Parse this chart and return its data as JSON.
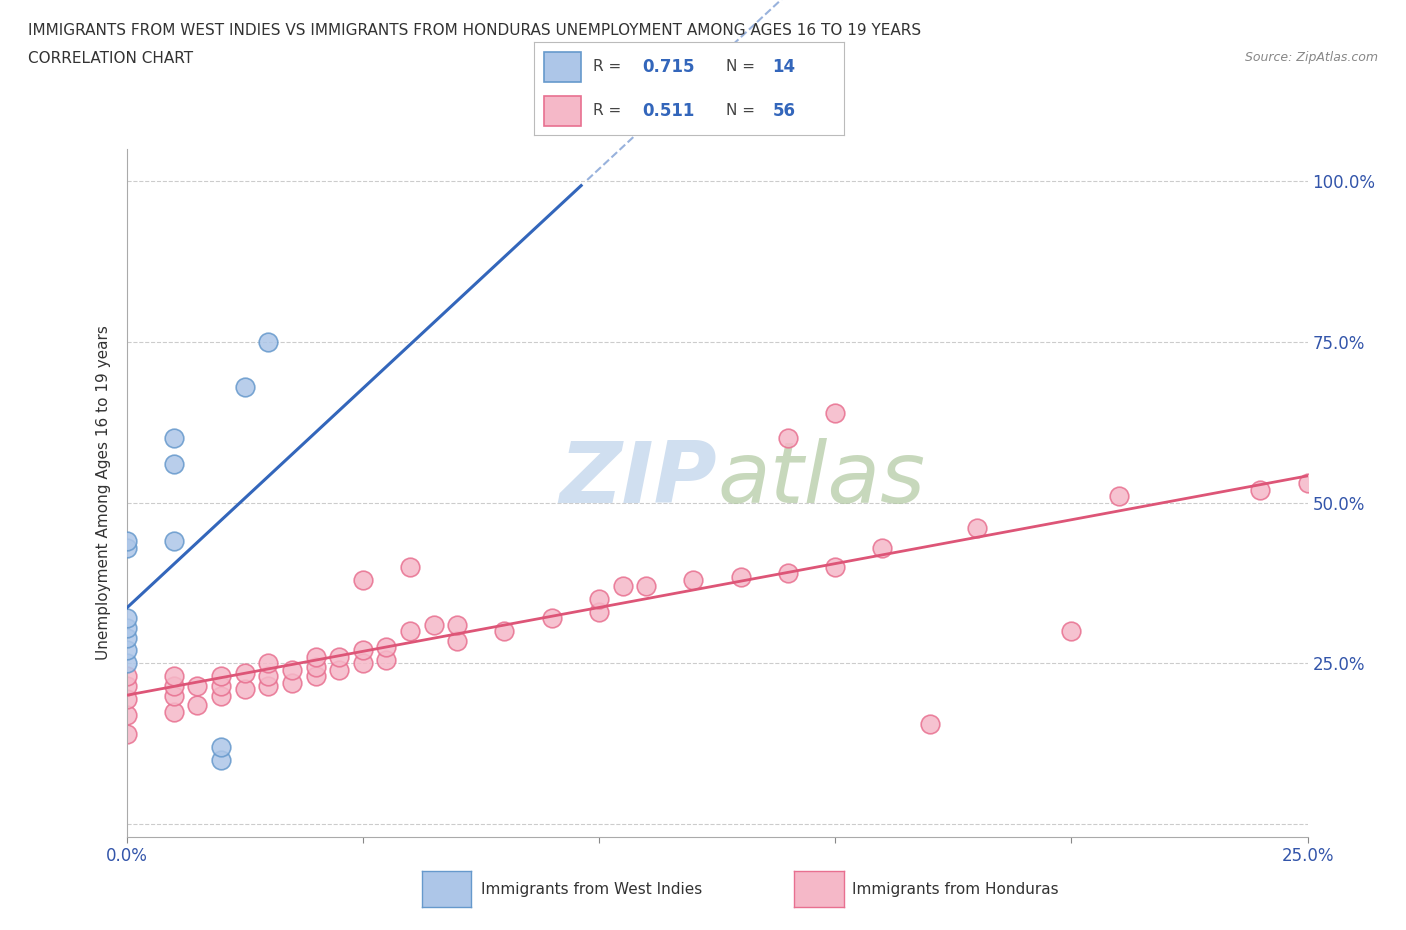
{
  "title_line1": "IMMIGRANTS FROM WEST INDIES VS IMMIGRANTS FROM HONDURAS UNEMPLOYMENT AMONG AGES 16 TO 19 YEARS",
  "title_line2": "CORRELATION CHART",
  "source_text": "Source: ZipAtlas.com",
  "ylabel": "Unemployment Among Ages 16 to 19 years",
  "xlim": [
    0.0,
    0.25
  ],
  "ylim": [
    -0.02,
    1.05
  ],
  "xtick_positions": [
    0.0,
    0.05,
    0.1,
    0.15,
    0.2,
    0.25
  ],
  "xticklabels": [
    "0.0%",
    "",
    "",
    "",
    "",
    "25.0%"
  ],
  "ytick_positions": [
    0.0,
    0.25,
    0.5,
    0.75,
    1.0
  ],
  "yticklabels_right": [
    "",
    "25.0%",
    "50.0%",
    "75.0%",
    "100.0%"
  ],
  "color_west_indies_fill": "#adc6e8",
  "color_west_indies_edge": "#6699cc",
  "color_honduras_fill": "#f5b8c8",
  "color_honduras_edge": "#e87090",
  "line_color_west_indies": "#3366bb",
  "line_color_honduras": "#dd5577",
  "background_color": "#ffffff",
  "watermark_color": "#d0dff0",
  "wi_x": [
    0.0,
    0.0,
    0.0,
    0.0,
    0.0,
    0.0,
    0.0,
    0.01,
    0.01,
    0.01,
    0.02,
    0.02,
    0.025,
    0.03
  ],
  "wi_y": [
    0.25,
    0.27,
    0.29,
    0.305,
    0.32,
    0.43,
    0.44,
    0.44,
    0.56,
    0.6,
    0.1,
    0.12,
    0.68,
    0.75
  ],
  "ho_x": [
    0.0,
    0.0,
    0.0,
    0.0,
    0.0,
    0.01,
    0.01,
    0.01,
    0.01,
    0.015,
    0.015,
    0.02,
    0.02,
    0.02,
    0.025,
    0.025,
    0.03,
    0.03,
    0.03,
    0.035,
    0.035,
    0.04,
    0.04,
    0.04,
    0.045,
    0.045,
    0.05,
    0.05,
    0.05,
    0.055,
    0.055,
    0.06,
    0.06,
    0.065,
    0.07,
    0.07,
    0.08,
    0.09,
    0.1,
    0.1,
    0.105,
    0.11,
    0.12,
    0.13,
    0.14,
    0.14,
    0.15,
    0.15,
    0.16,
    0.17,
    0.18,
    0.2,
    0.21,
    0.24,
    0.25
  ],
  "ho_y": [
    0.14,
    0.17,
    0.195,
    0.215,
    0.23,
    0.175,
    0.2,
    0.215,
    0.23,
    0.185,
    0.215,
    0.2,
    0.215,
    0.23,
    0.21,
    0.235,
    0.215,
    0.23,
    0.25,
    0.22,
    0.24,
    0.23,
    0.245,
    0.26,
    0.24,
    0.26,
    0.25,
    0.27,
    0.38,
    0.255,
    0.275,
    0.3,
    0.4,
    0.31,
    0.285,
    0.31,
    0.3,
    0.32,
    0.33,
    0.35,
    0.37,
    0.37,
    0.38,
    0.385,
    0.39,
    0.6,
    0.4,
    0.64,
    0.43,
    0.155,
    0.46,
    0.3,
    0.51,
    0.52,
    0.53
  ]
}
